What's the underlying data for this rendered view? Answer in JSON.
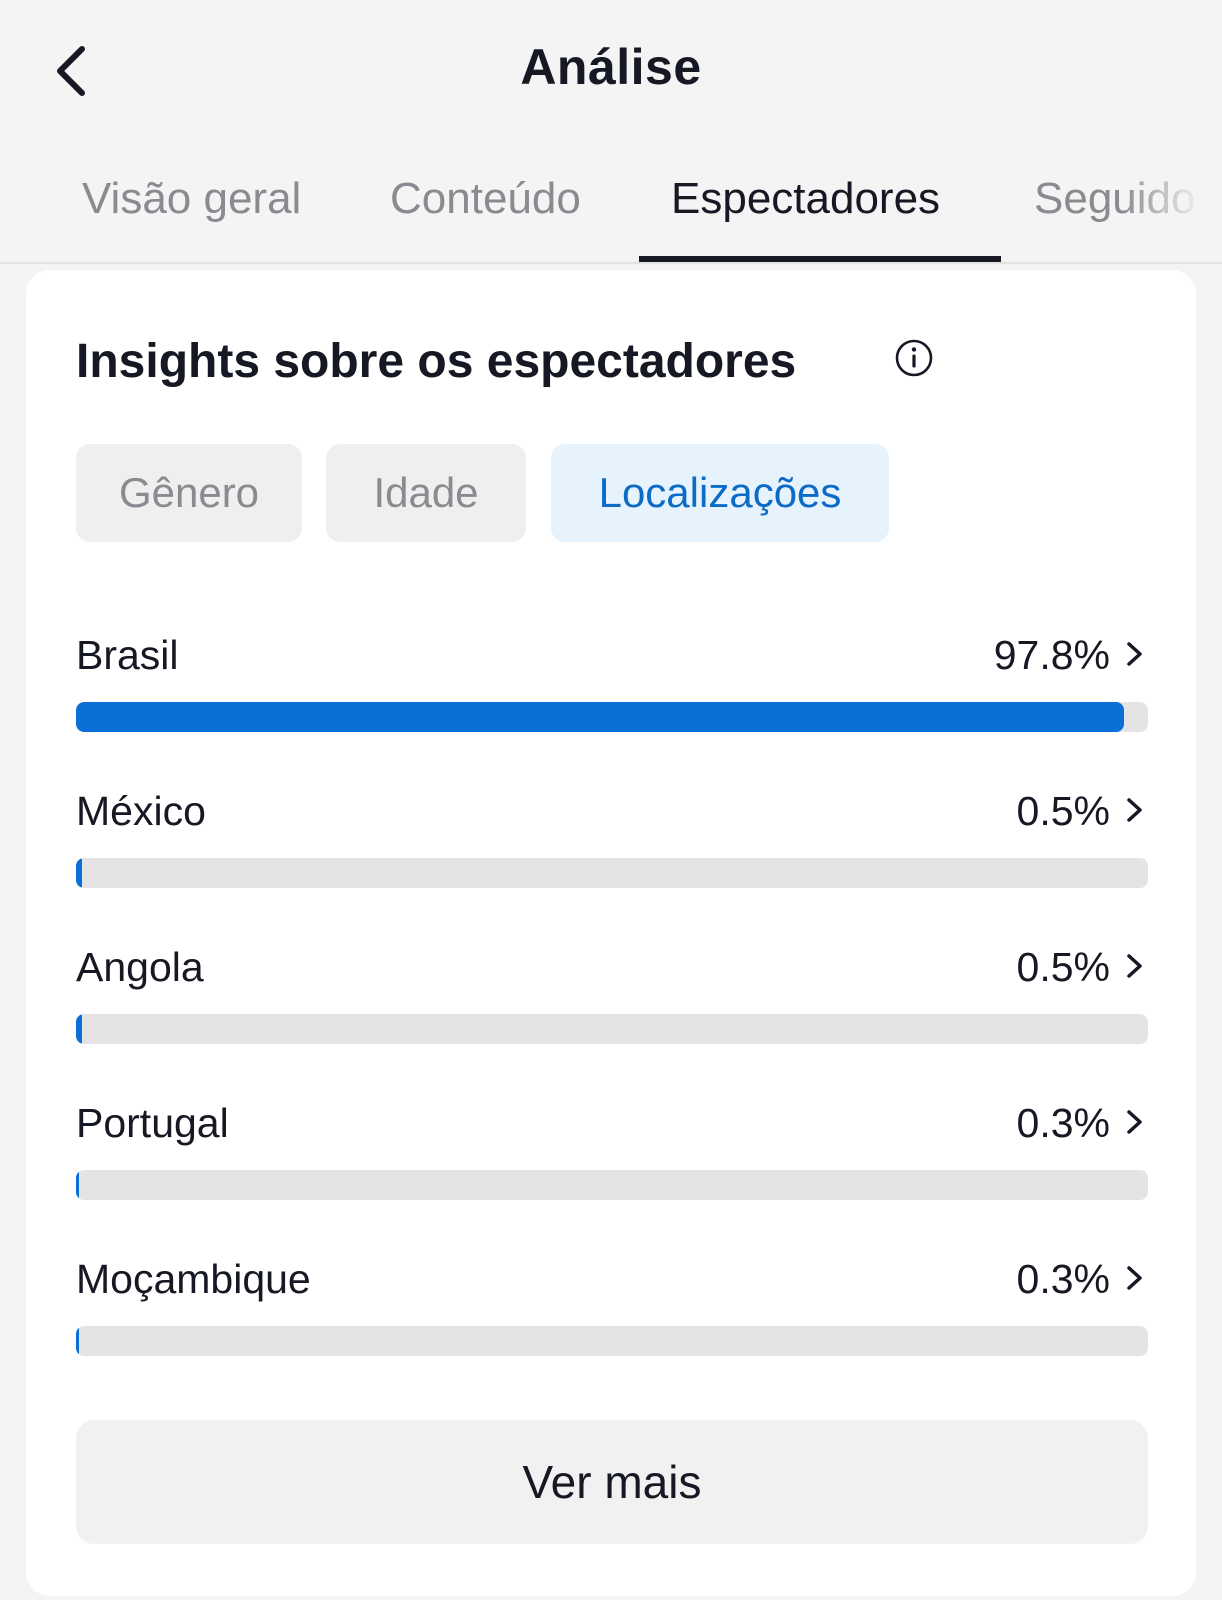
{
  "header": {
    "title": "Análise",
    "back_icon": "chevron-left-icon"
  },
  "tabs": [
    {
      "label": "Visão geral",
      "active": false
    },
    {
      "label": "Conteúdo",
      "active": false
    },
    {
      "label": "Espectadores",
      "active": true
    },
    {
      "label": "Seguido",
      "active": false
    }
  ],
  "insights": {
    "title": "Insights sobre os espectadores",
    "info_icon": "info-icon",
    "filters": [
      {
        "label": "Gênero",
        "active": false
      },
      {
        "label": "Idade",
        "active": false
      },
      {
        "label": "Localizações",
        "active": true
      }
    ],
    "locations": [
      {
        "name": "Brasil",
        "value_label": "97.8%",
        "percent": 97.8
      },
      {
        "name": "México",
        "value_label": "0.5%",
        "percent": 0.5
      },
      {
        "name": "Angola",
        "value_label": "0.5%",
        "percent": 0.5
      },
      {
        "name": "Portugal",
        "value_label": "0.3%",
        "percent": 0.3
      },
      {
        "name": "Moçambique",
        "value_label": "0.3%",
        "percent": 0.3
      }
    ],
    "more_button": "Ver mais"
  },
  "colors": {
    "accent": "#0b6fd8",
    "active_chip_bg": "#e6f2fc",
    "active_chip_text": "#0b6bc7"
  }
}
